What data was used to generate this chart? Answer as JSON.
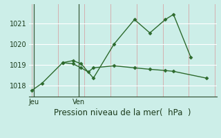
{
  "line1_x": [
    0,
    1,
    3,
    4,
    4.8,
    6,
    8,
    10,
    11.5,
    13,
    13.8,
    15.5
  ],
  "line1_y": [
    1017.75,
    1018.1,
    1019.1,
    1019.2,
    1019.05,
    1018.35,
    1020.0,
    1021.2,
    1020.55,
    1021.2,
    1021.45,
    1019.35
  ],
  "line2_x": [
    3,
    4,
    4.8,
    5.5,
    6,
    8,
    10,
    11.5,
    13,
    13.8,
    17
  ],
  "line2_y": [
    1019.1,
    1019.05,
    1018.85,
    1018.65,
    1018.85,
    1018.95,
    1018.85,
    1018.78,
    1018.72,
    1018.68,
    1018.35
  ],
  "line_color": "#2d6a2d",
  "bg_color": "#cceee8",
  "grid_color_v": "#d4b0b0",
  "grid_color_h": "#ffffff",
  "title": "Pression niveau de la mer(  hPa  )",
  "xlabel_jeu": "Jeu",
  "xlabel_ven": "Ven",
  "yticks": [
    1018,
    1019,
    1020,
    1021
  ],
  "ylim": [
    1017.45,
    1021.95
  ],
  "xmin": -0.3,
  "xmax": 18,
  "vgrid_x": [
    0,
    2.55,
    5.1,
    7.65,
    10.2,
    12.75,
    15.3,
    17.85
  ],
  "jeu_x": 0.2,
  "ven_x": 4.55,
  "day_line_x": [
    0.2,
    4.55
  ],
  "title_fontsize": 8.5,
  "tick_fontsize": 7
}
